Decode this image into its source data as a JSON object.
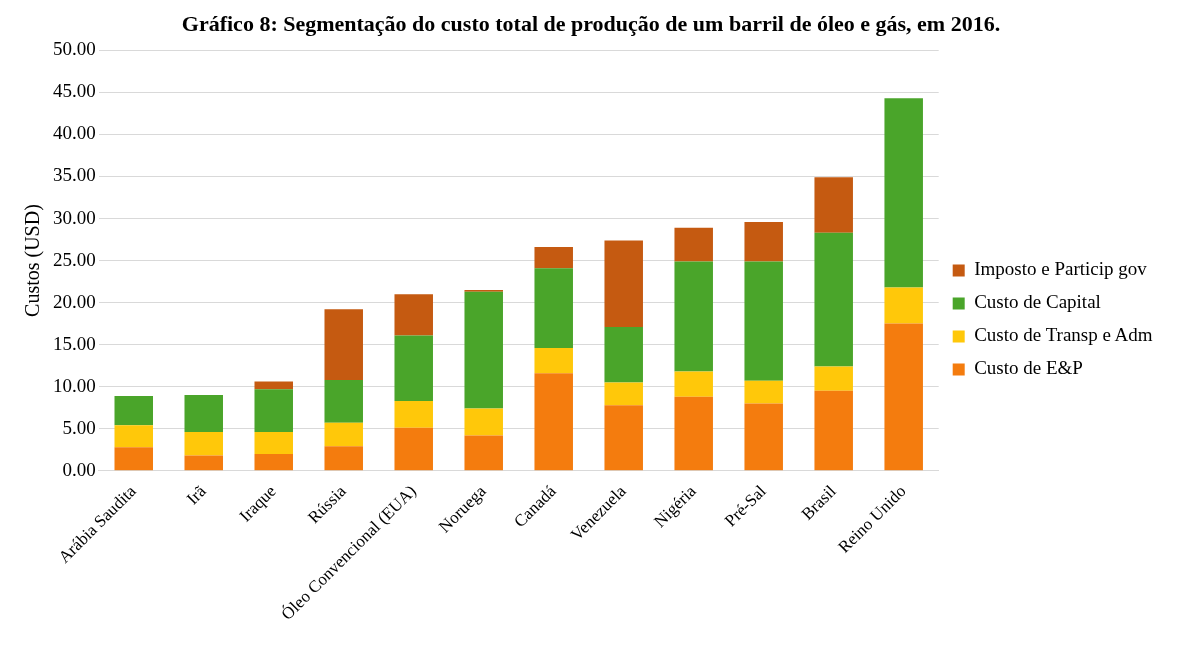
{
  "chart_data": {
    "type": "bar",
    "title": "Gráfico 8: Segmentação do custo total de produção de um barril de óleo e gás, em 2016.",
    "ylabel": "Custos (USD)",
    "stacked": true,
    "grid": "y",
    "legend": "right",
    "categories": [
      "Arábia Saudita",
      "Irã",
      "Iraque",
      "Rússia",
      "Óleo Convencional (EUA)",
      "Noruega",
      "Canadá",
      "Venezuela",
      "Nigéria",
      "Pré-Sal",
      "Brasil",
      "Reino Unido"
    ],
    "series": [
      {
        "name": "Custo de E&P",
        "color": "#f47c0e",
        "values": [
          2.8,
          1.8,
          2.0,
          2.9,
          5.1,
          4.2,
          11.6,
          7.8,
          8.8,
          8.0,
          9.5,
          17.5
        ]
      },
      {
        "name": "Custo de Transp e Adm",
        "color": "#ffc80a",
        "values": [
          2.6,
          2.8,
          2.6,
          2.8,
          3.2,
          3.2,
          3.0,
          2.7,
          3.0,
          2.7,
          2.9,
          4.3
        ]
      },
      {
        "name": "Custo de Capital",
        "color": "#4aa52a",
        "values": [
          3.5,
          4.4,
          5.1,
          5.1,
          7.8,
          13.9,
          9.5,
          6.6,
          13.1,
          14.2,
          15.9,
          22.5
        ]
      },
      {
        "name": "Imposto e Particip gov",
        "color": "#c55a11",
        "values": [
          0,
          0,
          0.9,
          8.4,
          4.9,
          0.2,
          2.5,
          10.3,
          4.0,
          4.7,
          6.6,
          0
        ]
      }
    ],
    "ylim": [
      0,
      50
    ],
    "yticks": [
      {
        "value": 0,
        "label": "0.00"
      },
      {
        "value": 5,
        "label": "5.00"
      },
      {
        "value": 10,
        "label": "10.00"
      },
      {
        "value": 15,
        "label": "15.00"
      },
      {
        "value": 20,
        "label": "20.00"
      },
      {
        "value": 25,
        "label": "25.00"
      },
      {
        "value": 30,
        "label": "30.00"
      },
      {
        "value": 35,
        "label": "35.00"
      },
      {
        "value": 40,
        "label": "40.00"
      },
      {
        "value": 45,
        "label": "45.00"
      },
      {
        "value": 50,
        "label": "50.00"
      }
    ]
  }
}
